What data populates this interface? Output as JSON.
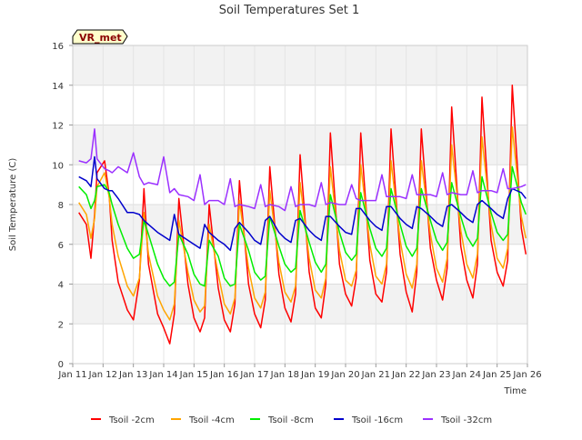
{
  "chart_data": {
    "type": "line",
    "title": "Soil Temperatures Set 1",
    "xlabel": "Time",
    "ylabel": "Soil Temperature (C)",
    "station_label": "VR_met",
    "xlim": [
      11,
      26
    ],
    "ylim": [
      0,
      16
    ],
    "x_ticks": [
      11,
      12,
      13,
      14,
      15,
      16,
      17,
      18,
      19,
      20,
      21,
      22,
      23,
      24,
      25,
      26
    ],
    "x_tick_labels": [
      "Jan 11",
      "Jan 12",
      "Jan 13",
      "Jan 14",
      "Jan 15",
      "Jan 16",
      "Jan 17",
      "Jan 18",
      "Jan 19",
      "Jan 20",
      "Jan 21",
      "Jan 22",
      "Jan 23",
      "Jan 24",
      "Jan 25",
      "Jan 26"
    ],
    "y_ticks": [
      0,
      2,
      4,
      6,
      8,
      10,
      12,
      14,
      16
    ],
    "y_tick_labels": [
      "0",
      "2",
      "4",
      "6",
      "8",
      "10",
      "12",
      "14",
      "16"
    ],
    "grid": true,
    "legend_position": "bottom",
    "series": [
      {
        "name": "Tsoil -2cm",
        "color": "#ff0000",
        "x": [
          11.2,
          11.45,
          11.6,
          11.72,
          11.8,
          12.05,
          12.2,
          12.3,
          12.5,
          12.8,
          13.0,
          13.2,
          13.35,
          13.5,
          13.8,
          14.0,
          14.2,
          14.35,
          14.5,
          14.8,
          15.0,
          15.2,
          15.35,
          15.5,
          15.8,
          16.0,
          16.2,
          16.35,
          16.5,
          16.8,
          17.0,
          17.2,
          17.35,
          17.5,
          17.8,
          18.0,
          18.2,
          18.35,
          18.5,
          18.8,
          19.0,
          19.2,
          19.35,
          19.5,
          19.8,
          20.0,
          20.2,
          20.35,
          20.5,
          20.8,
          21.0,
          21.2,
          21.35,
          21.5,
          21.8,
          22.0,
          22.2,
          22.35,
          22.5,
          22.8,
          23.0,
          23.2,
          23.35,
          23.5,
          23.8,
          24.0,
          24.2,
          24.35,
          24.5,
          24.8,
          25.0,
          25.2,
          25.35,
          25.5,
          25.8,
          25.95
        ],
        "y": [
          7.6,
          7.0,
          5.3,
          7.5,
          9.6,
          10.2,
          8.5,
          6.2,
          4.1,
          2.7,
          2.2,
          4.2,
          8.8,
          5.0,
          2.5,
          1.8,
          1.0,
          2.5,
          8.3,
          4.0,
          2.3,
          1.6,
          2.3,
          8.0,
          3.8,
          2.2,
          1.6,
          3.0,
          9.2,
          4.0,
          2.5,
          1.8,
          3.2,
          9.9,
          4.5,
          2.8,
          2.1,
          3.5,
          10.5,
          4.6,
          2.8,
          2.3,
          4.0,
          11.6,
          5.0,
          3.5,
          2.9,
          4.3,
          11.6,
          5.2,
          3.5,
          3.1,
          4.6,
          11.8,
          5.5,
          3.6,
          2.6,
          4.6,
          11.8,
          5.8,
          4.2,
          3.2,
          4.8,
          12.9,
          5.9,
          4.2,
          3.3,
          5.0,
          13.4,
          6.2,
          4.6,
          3.9,
          5.2,
          14.0,
          6.8,
          5.5
        ]
      },
      {
        "name": "Tsoil -4cm",
        "color": "#ffa500",
        "x": [
          11.2,
          11.45,
          11.6,
          11.72,
          11.8,
          12.05,
          12.2,
          12.3,
          12.5,
          12.8,
          13.0,
          13.2,
          13.35,
          13.5,
          13.8,
          14.0,
          14.2,
          14.35,
          14.5,
          14.8,
          15.0,
          15.2,
          15.35,
          15.5,
          15.8,
          16.0,
          16.2,
          16.35,
          16.5,
          16.8,
          17.0,
          17.2,
          17.35,
          17.5,
          17.8,
          18.0,
          18.2,
          18.35,
          18.5,
          18.8,
          19.0,
          19.2,
          19.35,
          19.5,
          19.8,
          20.0,
          20.2,
          20.35,
          20.5,
          20.8,
          21.0,
          21.2,
          21.35,
          21.5,
          21.8,
          22.0,
          22.2,
          22.35,
          22.5,
          22.8,
          23.0,
          23.2,
          23.35,
          23.5,
          23.8,
          24.0,
          24.2,
          24.35,
          24.5,
          24.8,
          25.0,
          25.2,
          25.35,
          25.5,
          25.8,
          25.95
        ],
        "y": [
          8.1,
          7.5,
          6.3,
          7.3,
          8.9,
          9.6,
          8.4,
          7.0,
          5.4,
          3.9,
          3.4,
          4.3,
          7.6,
          5.5,
          3.4,
          2.7,
          2.2,
          3.0,
          7.2,
          4.6,
          3.2,
          2.6,
          2.9,
          7.0,
          4.5,
          3.0,
          2.5,
          3.3,
          8.2,
          4.8,
          3.3,
          2.8,
          3.6,
          8.7,
          5.1,
          3.6,
          3.1,
          3.9,
          9.1,
          5.3,
          3.7,
          3.3,
          4.3,
          9.9,
          5.7,
          4.2,
          3.9,
          4.7,
          10.0,
          6.0,
          4.4,
          4.0,
          5.0,
          10.2,
          6.2,
          4.5,
          3.8,
          5.0,
          10.2,
          6.5,
          4.8,
          4.1,
          5.3,
          11.0,
          6.7,
          5.0,
          4.3,
          5.5,
          11.4,
          7.0,
          5.3,
          4.8,
          5.8,
          11.9,
          7.4,
          6.3
        ]
      },
      {
        "name": "Tsoil -8cm",
        "color": "#00ee00",
        "x": [
          11.2,
          11.45,
          11.6,
          11.72,
          11.8,
          12.05,
          12.2,
          12.3,
          12.5,
          12.8,
          13.0,
          13.2,
          13.35,
          13.5,
          13.8,
          14.0,
          14.2,
          14.35,
          14.5,
          14.8,
          15.0,
          15.2,
          15.35,
          15.5,
          15.8,
          16.0,
          16.2,
          16.35,
          16.5,
          16.8,
          17.0,
          17.2,
          17.35,
          17.5,
          17.8,
          18.0,
          18.2,
          18.35,
          18.5,
          18.8,
          19.0,
          19.2,
          19.35,
          19.5,
          19.8,
          20.0,
          20.2,
          20.35,
          20.5,
          20.8,
          21.0,
          21.2,
          21.35,
          21.5,
          21.8,
          22.0,
          22.2,
          22.35,
          22.5,
          22.8,
          23.0,
          23.2,
          23.35,
          23.5,
          23.8,
          24.0,
          24.2,
          24.35,
          24.5,
          24.8,
          25.0,
          25.2,
          25.35,
          25.5,
          25.8,
          25.95
        ],
        "y": [
          8.9,
          8.5,
          7.8,
          8.2,
          8.9,
          9.0,
          8.6,
          8.0,
          7.0,
          5.8,
          5.3,
          5.5,
          7.2,
          6.5,
          5.0,
          4.3,
          3.9,
          4.1,
          6.5,
          5.5,
          4.5,
          4.0,
          3.9,
          6.2,
          5.4,
          4.3,
          3.9,
          4.0,
          7.0,
          5.7,
          4.6,
          4.2,
          4.4,
          7.4,
          5.9,
          5.0,
          4.6,
          4.8,
          7.7,
          6.1,
          5.1,
          4.6,
          5.0,
          8.5,
          6.6,
          5.6,
          5.2,
          5.5,
          8.6,
          6.8,
          5.8,
          5.4,
          5.8,
          8.8,
          7.0,
          5.9,
          5.4,
          5.8,
          8.8,
          7.2,
          6.2,
          5.7,
          6.1,
          9.1,
          7.4,
          6.4,
          5.9,
          6.3,
          9.4,
          7.6,
          6.6,
          6.2,
          6.5,
          9.9,
          8.1,
          7.5
        ]
      },
      {
        "name": "Tsoil -16cm",
        "color": "#0000cc",
        "x": [
          11.2,
          11.45,
          11.6,
          11.72,
          11.8,
          12.05,
          12.2,
          12.3,
          12.5,
          12.8,
          13.0,
          13.2,
          13.35,
          13.5,
          13.8,
          14.0,
          14.2,
          14.35,
          14.5,
          14.8,
          15.0,
          15.2,
          15.35,
          15.5,
          15.8,
          16.0,
          16.2,
          16.35,
          16.5,
          16.8,
          17.0,
          17.2,
          17.35,
          17.5,
          17.8,
          18.0,
          18.2,
          18.35,
          18.5,
          18.8,
          19.0,
          19.2,
          19.35,
          19.5,
          19.8,
          20.0,
          20.2,
          20.35,
          20.5,
          20.8,
          21.0,
          21.2,
          21.35,
          21.5,
          21.8,
          22.0,
          22.2,
          22.35,
          22.5,
          22.8,
          23.0,
          23.2,
          23.35,
          23.5,
          23.8,
          24.0,
          24.2,
          24.35,
          24.5,
          24.8,
          25.0,
          25.2,
          25.35,
          25.5,
          25.8,
          25.95
        ],
        "y": [
          9.4,
          9.2,
          8.9,
          10.4,
          9.3,
          8.8,
          8.7,
          8.7,
          8.3,
          7.6,
          7.6,
          7.5,
          7.2,
          7.0,
          6.6,
          6.4,
          6.2,
          7.5,
          6.5,
          6.2,
          6.0,
          5.8,
          7.0,
          6.6,
          6.2,
          6.0,
          5.7,
          6.8,
          7.1,
          6.6,
          6.2,
          6.0,
          7.2,
          7.4,
          6.6,
          6.3,
          6.1,
          7.2,
          7.3,
          6.7,
          6.4,
          6.2,
          7.4,
          7.4,
          6.9,
          6.6,
          6.5,
          7.8,
          7.8,
          7.2,
          6.9,
          6.7,
          7.9,
          7.9,
          7.3,
          7.0,
          6.8,
          7.9,
          7.8,
          7.4,
          7.1,
          6.9,
          7.9,
          8.0,
          7.6,
          7.3,
          7.1,
          8.0,
          8.2,
          7.8,
          7.5,
          7.3,
          8.3,
          8.8,
          8.6,
          8.3
        ]
      },
      {
        "name": "Tsoil -32cm",
        "color": "#9b30ff",
        "x": [
          11.2,
          11.45,
          11.6,
          11.72,
          11.8,
          12.05,
          12.2,
          12.3,
          12.5,
          12.8,
          13.0,
          13.2,
          13.35,
          13.5,
          13.8,
          14.0,
          14.2,
          14.35,
          14.5,
          14.8,
          15.0,
          15.2,
          15.35,
          15.5,
          15.8,
          16.0,
          16.2,
          16.35,
          16.5,
          16.8,
          17.0,
          17.2,
          17.35,
          17.5,
          17.8,
          18.0,
          18.2,
          18.35,
          18.5,
          18.8,
          19.0,
          19.2,
          19.35,
          19.5,
          19.8,
          20.0,
          20.2,
          20.35,
          20.5,
          20.8,
          21.0,
          21.2,
          21.35,
          21.5,
          21.8,
          22.0,
          22.2,
          22.35,
          22.5,
          22.8,
          23.0,
          23.2,
          23.35,
          23.5,
          23.8,
          24.0,
          24.2,
          24.35,
          24.5,
          24.8,
          25.0,
          25.2,
          25.35,
          25.5,
          25.8,
          25.95
        ],
        "y": [
          10.2,
          10.1,
          10.3,
          11.8,
          10.3,
          9.8,
          9.7,
          9.6,
          9.9,
          9.6,
          10.6,
          9.4,
          9.0,
          9.1,
          9.0,
          10.4,
          8.6,
          8.8,
          8.5,
          8.4,
          8.2,
          9.5,
          8.0,
          8.2,
          8.2,
          8.0,
          9.3,
          7.9,
          8.0,
          7.9,
          7.8,
          9.0,
          7.9,
          8.0,
          7.9,
          7.7,
          8.9,
          7.9,
          8.0,
          8.0,
          7.9,
          9.1,
          8.0,
          8.1,
          8.0,
          8.0,
          9.0,
          8.3,
          8.2,
          8.2,
          8.2,
          9.5,
          8.4,
          8.4,
          8.4,
          8.3,
          9.5,
          8.5,
          8.5,
          8.5,
          8.4,
          9.6,
          8.5,
          8.6,
          8.5,
          8.5,
          9.7,
          8.6,
          8.7,
          8.7,
          8.6,
          9.8,
          8.8,
          8.8,
          8.9,
          9.0
        ]
      }
    ]
  }
}
